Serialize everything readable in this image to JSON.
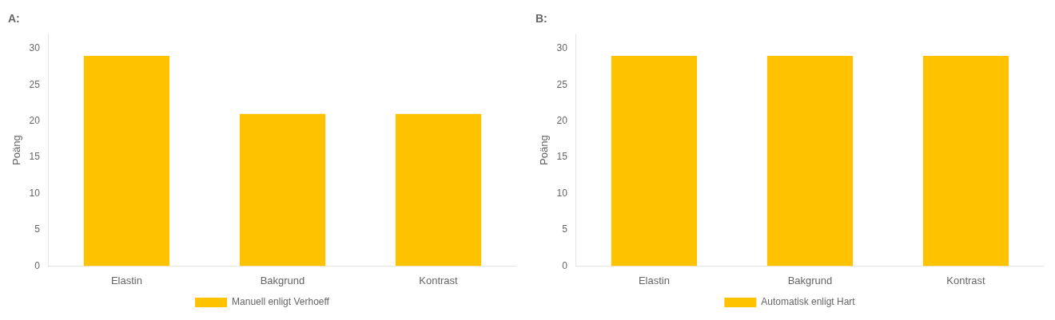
{
  "chart_data": [
    {
      "type": "bar",
      "title": "A:",
      "categories": [
        "Elastin",
        "Bakgrund",
        "Kontrast"
      ],
      "series": [
        {
          "name": "Manuell enligt Verhoeff",
          "color": "#FFC200",
          "values": [
            29,
            21,
            21
          ]
        }
      ],
      "ylabel": "Poäng",
      "ylim": [
        0,
        32
      ],
      "yticks": [
        0,
        5,
        10,
        15,
        20,
        25,
        30
      ],
      "grid": false,
      "legend": "bottom"
    },
    {
      "type": "bar",
      "title": "B:",
      "categories": [
        "Elastin",
        "Bakgrund",
        "Kontrast"
      ],
      "series": [
        {
          "name": "Automatisk enligt Hart",
          "color": "#FFC200",
          "values": [
            29,
            29,
            29
          ]
        }
      ],
      "ylabel": "Poäng",
      "ylim": [
        0,
        32
      ],
      "yticks": [
        0,
        5,
        10,
        15,
        20,
        25,
        30
      ],
      "grid": false,
      "legend": "bottom"
    }
  ]
}
